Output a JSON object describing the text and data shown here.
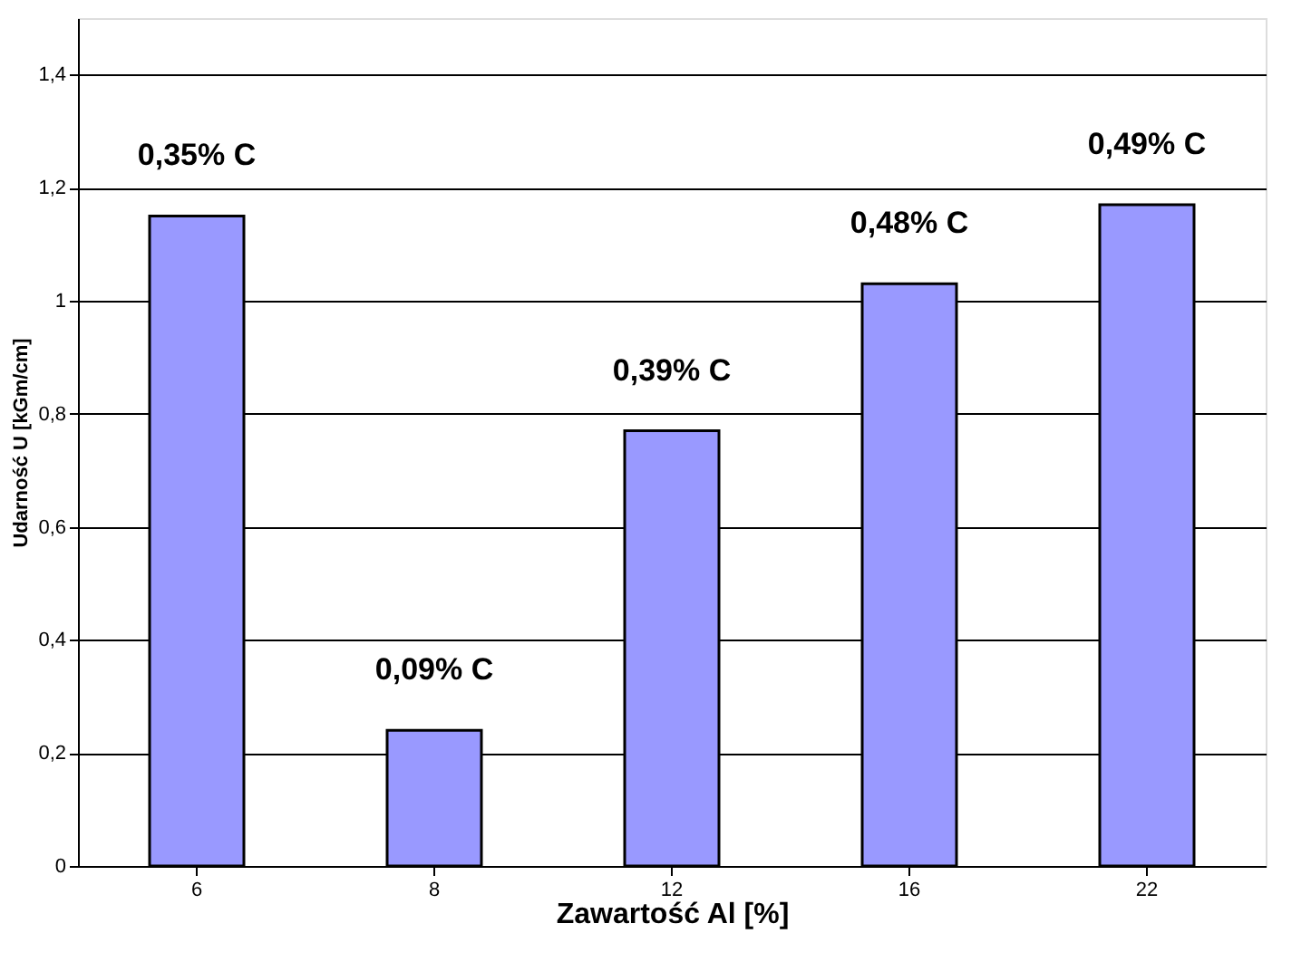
{
  "chart_data": {
    "type": "bar",
    "xlabel": "Zawartość Al [%]",
    "ylabel": "Udarność U [kGm/cm]",
    "categories": [
      "6",
      "8",
      "12",
      "16",
      "22"
    ],
    "values": [
      1.15,
      0.24,
      0.77,
      1.03,
      1.17
    ],
    "color": "#9999ff",
    "ylim": [
      0,
      1.5
    ],
    "yticks": [
      0,
      {
        "value": 0.2,
        "label": "0,2"
      },
      {
        "value": 0.4,
        "label": "0,4"
      },
      {
        "value": 0.6,
        "label": "0,6"
      },
      {
        "value": 0.8,
        "label": "0,8"
      },
      1,
      {
        "value": 1.2,
        "label": "1,2"
      },
      {
        "value": 1.4,
        "label": "1,4"
      }
    ],
    "grid": "y",
    "annotations": [
      {
        "text": "0,35% C",
        "x": "6",
        "y": 1.15
      },
      {
        "text": "0,09% C",
        "x": "8",
        "y": 0.24
      },
      {
        "text": "0,39% C",
        "x": "12",
        "y": 0.77
      },
      {
        "text": "0,48% C",
        "x": "16",
        "y": 1.03
      },
      {
        "text": "0,49% C",
        "x": "22",
        "y": 1.17
      }
    ]
  }
}
